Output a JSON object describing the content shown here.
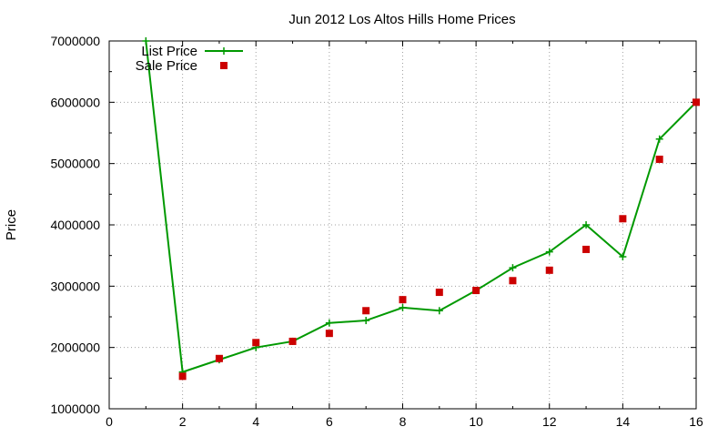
{
  "chart_data": {
    "type": "line",
    "title": "Jun 2012 Los Altos Hills Home Prices",
    "xlabel": "",
    "ylabel": "Price",
    "xlim": [
      0,
      16
    ],
    "ylim": [
      1000000,
      7000000
    ],
    "xticks": [
      0,
      2,
      4,
      6,
      8,
      10,
      12,
      14,
      16
    ],
    "yticks": [
      1000000,
      2000000,
      3000000,
      4000000,
      5000000,
      6000000,
      7000000
    ],
    "grid": true,
    "legend_position": "top-left",
    "series": [
      {
        "name": "List Price",
        "style": "line with plus markers",
        "color": "#009900",
        "x": [
          1,
          2,
          3,
          4,
          5,
          6,
          7,
          8,
          9,
          10,
          11,
          12,
          13,
          14,
          15,
          16
        ],
        "values": [
          7000000,
          1600000,
          1800000,
          2000000,
          2100000,
          2400000,
          2440000,
          2650000,
          2600000,
          2930000,
          3300000,
          3560000,
          4000000,
          3480000,
          5400000,
          6000000
        ]
      },
      {
        "name": "Sale Price",
        "style": "square points",
        "color": "#cc0000",
        "x": [
          2,
          3,
          4,
          5,
          6,
          7,
          8,
          9,
          10,
          11,
          12,
          13,
          14,
          15,
          16
        ],
        "values": [
          1530000,
          1820000,
          2080000,
          2100000,
          2230000,
          2600000,
          2780000,
          2900000,
          2930000,
          3090000,
          3260000,
          3600000,
          4100000,
          5070000,
          6000000
        ]
      }
    ]
  }
}
